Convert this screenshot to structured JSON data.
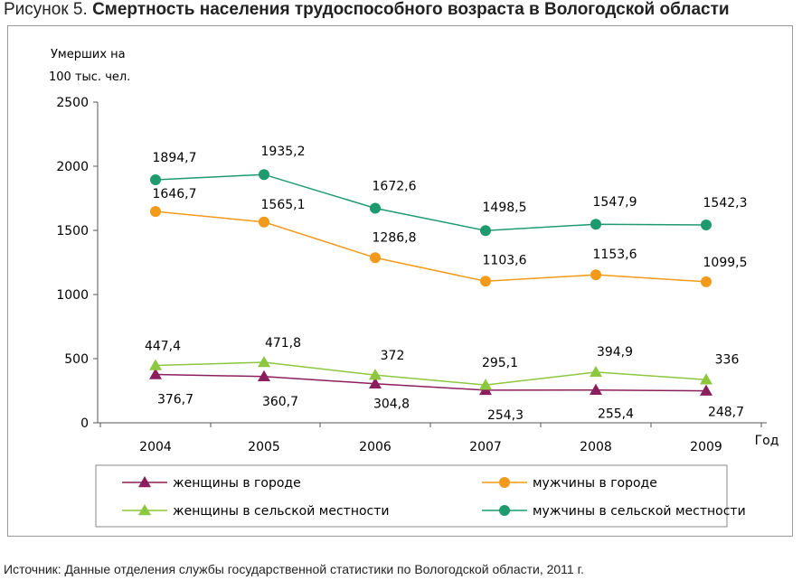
{
  "title_prefix": "Рисунок 5.",
  "title_main": "Смертность населения трудоспособного возраста в Вологодской области",
  "source": "Источник: Данные отделения службы государственной статистики по Вологодской области, 2011 г.",
  "chart_data": {
    "type": "line",
    "ylabel_line1": "Умерших на",
    "ylabel_line2": "100 тыс. чел.",
    "xlabel": "Год",
    "ylim": [
      0,
      2500
    ],
    "yticks": [
      0,
      500,
      1000,
      1500,
      2000,
      2500
    ],
    "categories": [
      "2004",
      "2005",
      "2006",
      "2007",
      "2008",
      "2009"
    ],
    "legend_position": "bottom",
    "series": [
      {
        "name": "женщины в городе",
        "color": "#8B1F5E",
        "marker": "triangle",
        "values": [
          376.7,
          360.7,
          304.8,
          254.3,
          255.4,
          248.7
        ],
        "labels": [
          "376,7",
          "360,7",
          "304,8",
          "254,3",
          "255,4",
          "248,7"
        ]
      },
      {
        "name": "мужчины в городе",
        "color": "#F39A1B",
        "marker": "circle",
        "values": [
          1646.7,
          1565.1,
          1286.8,
          1103.6,
          1153.6,
          1099.5
        ],
        "labels": [
          "1646,7",
          "1565,1",
          "1286,8",
          "1103,6",
          "1153,6",
          "1099,5"
        ]
      },
      {
        "name": "женщины в сельской местности",
        "color": "#8DC63F",
        "marker": "triangle",
        "values": [
          447.4,
          471.8,
          372,
          295.1,
          394.9,
          336
        ],
        "labels": [
          "447,4",
          "471,8",
          "372",
          "295,1",
          "394,9",
          "336"
        ]
      },
      {
        "name": "мужчины в сельской местности",
        "color": "#1E9A6E",
        "marker": "circle",
        "values": [
          1894.7,
          1935.2,
          1672.6,
          1498.5,
          1547.9,
          1542.3
        ],
        "labels": [
          "1894,7",
          "1935,2",
          "1672,6",
          "1498,5",
          "1547,9",
          "1542,3"
        ]
      }
    ]
  }
}
